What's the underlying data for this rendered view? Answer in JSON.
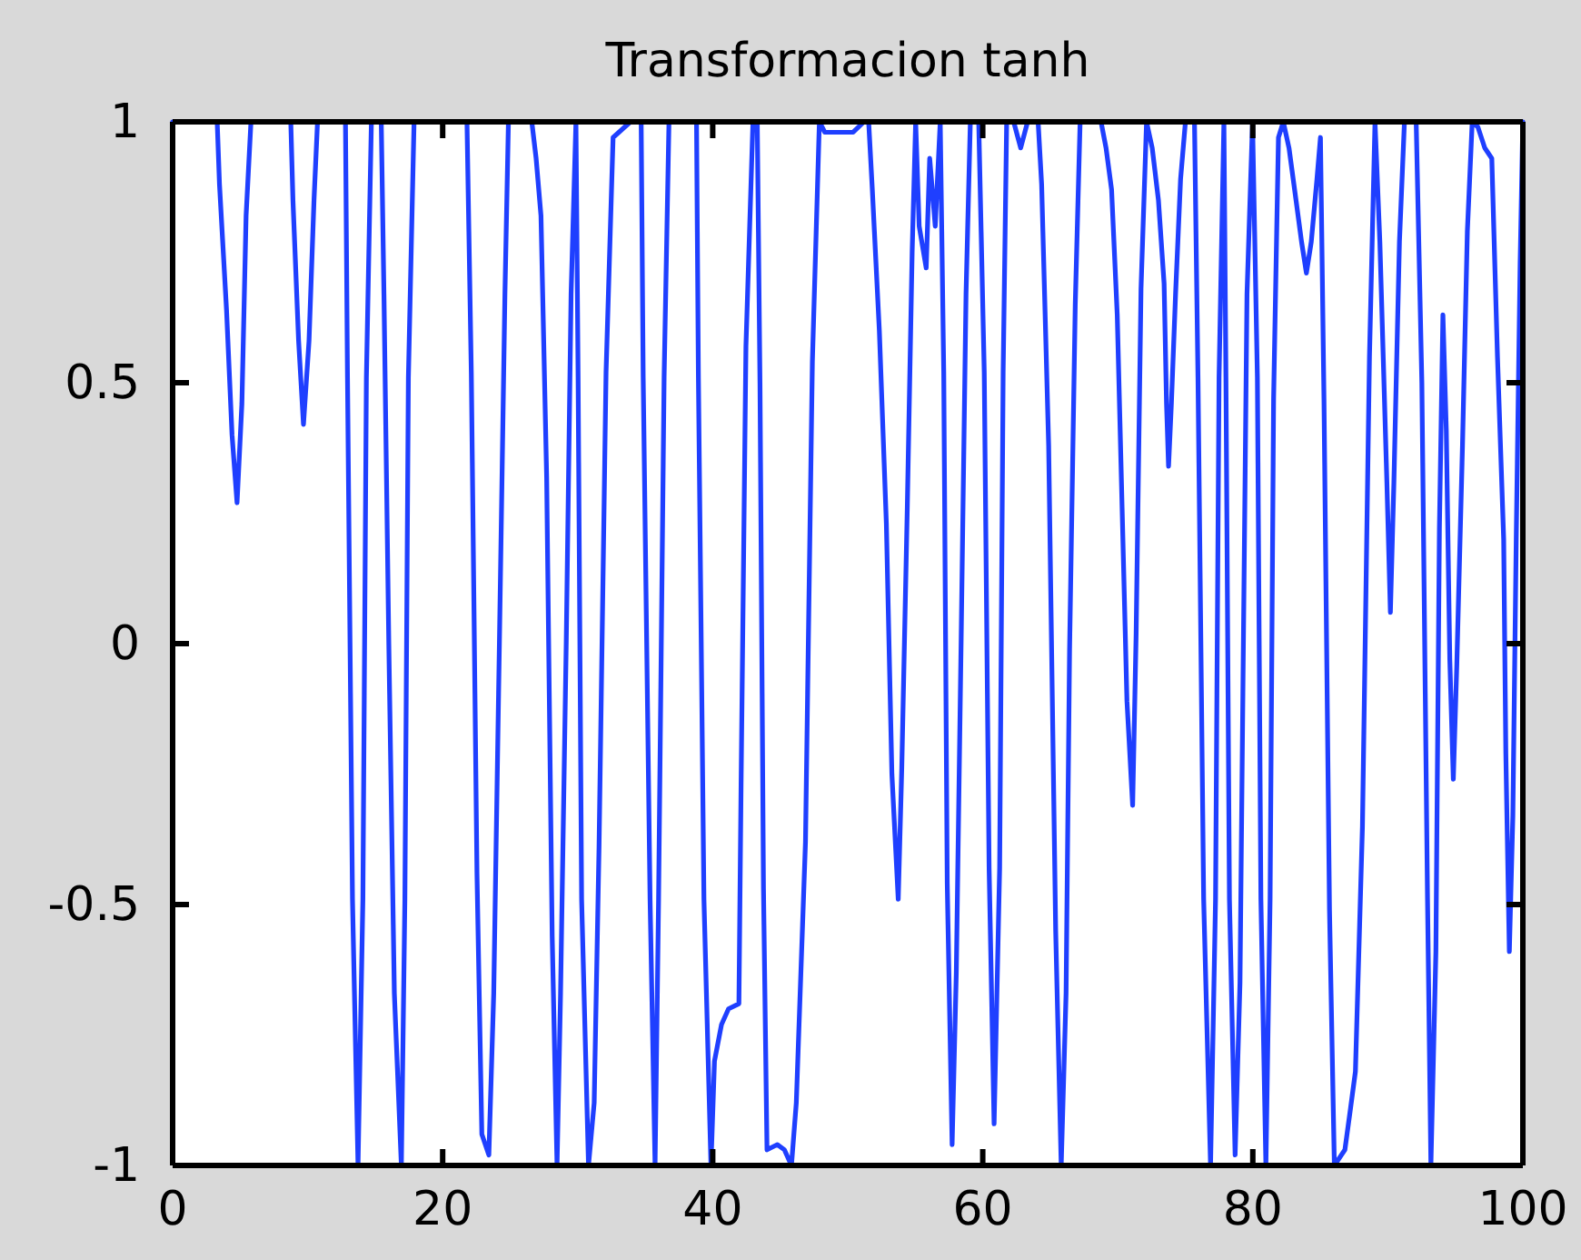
{
  "chart_data": {
    "type": "line",
    "title": "Transformacion tanh",
    "xlim": [
      0,
      100
    ],
    "xticks": [
      0,
      20,
      40,
      60,
      80,
      100
    ],
    "ylim": [
      -1,
      1
    ],
    "yticks": [
      -1,
      -0.5,
      0,
      0.5,
      1
    ],
    "series": [
      {
        "color": "#1f3fff",
        "x": [
          0,
          3.3,
          3.47,
          3.99,
          4.4,
          4.77,
          5.13,
          5.44,
          5.8,
          8.75,
          8.91,
          9.33,
          9.69,
          10.1,
          10.47,
          10.73,
          12.8,
          12.95,
          13.32,
          13.73,
          14.09,
          14.35,
          14.72,
          15.45,
          15.65,
          16.01,
          16.42,
          16.94,
          17.2,
          17.46,
          17.88,
          21.8,
          22.12,
          22.54,
          22.9,
          23.42,
          23.78,
          24.2,
          24.61,
          24.87,
          26.6,
          26.92,
          27.28,
          27.7,
          28.11,
          28.47,
          28.73,
          29.15,
          29.51,
          29.87,
          30.03,
          30.29,
          30.8,
          31.22,
          31.58,
          32.1,
          32.62,
          33.91,
          34.7,
          34.85,
          35.36,
          35.73,
          35.99,
          36.4,
          36.76,
          38.8,
          38.94,
          39.35,
          39.87,
          40.13,
          40.65,
          41.17,
          41.94,
          42.1,
          42.46,
          42.98,
          43.3,
          43.5,
          43.76,
          44.02,
          44.79,
          45.31,
          45.83,
          46.19,
          46.87,
          47.38,
          47.9,
          48.3,
          50.4,
          51.2,
          51.55,
          51.82,
          52.34,
          52.86,
          53.27,
          53.74,
          54.0,
          54.41,
          54.77,
          55.03,
          55.29,
          55.81,
          56.07,
          56.48,
          56.85,
          57.11,
          57.37,
          57.73,
          58.04,
          58.4,
          58.76,
          59.08,
          59.7,
          60.11,
          60.47,
          60.84,
          61.25,
          61.51,
          61.77,
          62.29,
          62.81,
          63.32,
          64.1,
          64.36,
          64.88,
          65.4,
          65.81,
          66.17,
          66.43,
          66.85,
          67.21,
          68.76,
          69.13,
          69.54,
          69.96,
          70.32,
          70.68,
          71.1,
          71.36,
          71.72,
          72.13,
          72.55,
          73.01,
          73.43,
          73.61,
          73.76,
          73.97,
          74.28,
          74.65,
          75.01,
          75.68,
          75.94,
          76.36,
          76.87,
          77.24,
          77.5,
          77.86,
          78.01,
          78.27,
          78.69,
          79.05,
          79.31,
          79.57,
          79.98,
          80.34,
          80.6,
          80.97,
          81.28,
          81.54,
          81.9,
          82.26,
          82.68,
          83.2,
          83.61,
          83.97,
          84.33,
          84.75,
          85.01,
          85.27,
          85.68,
          86.04,
          86.82,
          87.24,
          87.6,
          88.12,
          88.64,
          89.05,
          89.41,
          89.93,
          90.19,
          90.45,
          90.86,
          91.23,
          92.1,
          92.52,
          92.94,
          93.19,
          93.56,
          93.82,
          94.08,
          94.33,
          94.59,
          94.85,
          95.11,
          95.53,
          95.89,
          96.25,
          96.67,
          97.18,
          97.7,
          98.12,
          98.58,
          98.74,
          99,
          99.26,
          99.51,
          99.8,
          100
        ],
        "values": [
          1,
          1,
          0.88,
          0.64,
          0.4,
          0.27,
          0.46,
          0.82,
          1,
          1,
          0.85,
          0.58,
          0.42,
          0.58,
          0.85,
          1,
          1,
          0.51,
          -0.49,
          -1,
          -0.49,
          0.51,
          1,
          1,
          0.67,
          0,
          -0.67,
          -1,
          -0.49,
          0.51,
          1,
          1,
          0.52,
          -0.44,
          -0.94,
          -0.98,
          -0.67,
          0,
          0.67,
          1,
          1,
          0.93,
          0.82,
          0.32,
          -0.56,
          -1,
          -0.67,
          0,
          0.67,
          1,
          0.51,
          -0.49,
          -1,
          -0.88,
          -0.39,
          0.52,
          0.97,
          1,
          1,
          0.51,
          -0.49,
          -1,
          -0.49,
          0.51,
          1,
          1,
          0.51,
          -0.49,
          -1,
          -0.8,
          -0.73,
          -0.7,
          -0.69,
          -0.27,
          0.57,
          1,
          1,
          0.5,
          -0.47,
          -0.97,
          -0.96,
          -0.97,
          -1,
          -0.88,
          -0.38,
          0.54,
          1,
          0.98,
          0.98,
          1,
          1,
          0.87,
          0.6,
          0.23,
          -0.25,
          -0.49,
          -0.24,
          0.26,
          0.75,
          1,
          0.8,
          0.72,
          0.93,
          0.8,
          1,
          0.52,
          -0.46,
          -0.96,
          -0.63,
          0.01,
          0.67,
          1,
          1,
          0.52,
          -0.43,
          -0.92,
          -0.43,
          0.52,
          1,
          1,
          0.95,
          1,
          1,
          0.88,
          0.38,
          -0.55,
          -1,
          -0.67,
          -0.01,
          0.65,
          1,
          1,
          0.95,
          0.87,
          0.63,
          0.26,
          -0.11,
          -0.31,
          0.02,
          0.68,
          1,
          0.95,
          0.85,
          0.69,
          0.46,
          0.34,
          0.46,
          0.67,
          0.89,
          1,
          1,
          0.51,
          -0.49,
          -1,
          -0.49,
          0.51,
          1,
          0.51,
          -0.49,
          -0.98,
          -0.65,
          0.02,
          0.67,
          1,
          0.51,
          -0.49,
          -1,
          -0.49,
          0.47,
          0.97,
          1,
          0.95,
          0.85,
          0.77,
          0.71,
          0.77,
          0.89,
          0.97,
          0.47,
          -0.51,
          -1,
          -0.97,
          -0.89,
          -0.82,
          -0.35,
          0.55,
          1,
          0.77,
          0.31,
          0.06,
          0.31,
          0.77,
          1,
          1,
          0.5,
          -0.49,
          -1,
          -0.59,
          0.22,
          0.63,
          0.41,
          -0.03,
          -0.26,
          -0.04,
          0.38,
          0.79,
          1,
          0.99,
          0.95,
          0.93,
          0.55,
          0.2,
          -0.21,
          -0.59,
          -0.33,
          0.2,
          0.73,
          1
        ]
      }
    ]
  }
}
